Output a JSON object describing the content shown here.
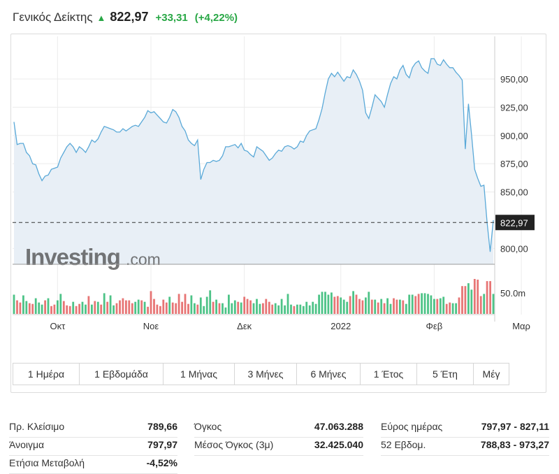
{
  "header": {
    "name": "Γενικός Δείκτης",
    "price": "822,97",
    "change": "+33,31",
    "change_pct": "(+4,22%)"
  },
  "colors": {
    "up": "#2eb872",
    "down": "#e35d5d",
    "line": "#5aa9d8",
    "fill": "#e8eff6",
    "positive_text": "#28a745"
  },
  "watermark": {
    "brand": "Investing",
    "suffix": ".com"
  },
  "chart_data": {
    "type": "area",
    "series": [
      {
        "values": [
          912,
          892,
          893,
          893,
          885,
          882,
          875,
          874,
          866,
          860,
          864,
          865,
          870,
          871,
          872,
          880,
          885,
          890,
          893,
          890,
          885,
          890,
          888,
          885,
          890,
          896,
          894,
          897,
          903,
          908,
          907,
          906,
          905,
          903,
          903,
          906,
          904,
          906,
          908,
          909,
          908,
          912,
          916,
          922,
          920,
          921,
          918,
          915,
          912,
          911,
          916,
          923,
          921,
          916,
          908,
          904,
          896,
          893,
          891,
          896,
          861,
          870,
          876,
          876,
          878,
          877,
          878,
          882,
          890,
          890,
          891,
          892,
          889,
          893,
          887,
          886,
          883,
          881,
          890,
          888,
          886,
          882,
          878,
          880,
          884,
          887,
          886,
          890,
          891,
          890,
          888,
          890,
          895,
          894,
          900,
          904,
          905,
          906,
          914,
          924,
          938,
          950,
          955,
          952,
          956,
          952,
          948,
          952,
          951,
          958,
          954,
          948,
          940,
          920,
          915,
          925,
          936,
          933,
          930,
          925,
          936,
          946,
          952,
          950,
          958,
          962,
          954,
          951,
          960,
          964,
          966,
          960,
          957,
          955,
          968,
          968,
          963,
          962,
          967,
          963,
          960,
          960,
          956,
          953,
          949,
          888,
          928,
          901,
          870,
          862,
          855,
          856,
          823,
          797,
          825
        ],
        "ylim": [
          786,
          984
        ]
      }
    ],
    "volume": {
      "values": [
        27,
        19,
        16,
        26,
        18,
        15,
        14,
        22,
        16,
        13,
        19,
        22,
        11,
        13,
        19,
        28,
        18,
        12,
        11,
        17,
        11,
        14,
        17,
        13,
        25,
        13,
        18,
        17,
        13,
        29,
        17,
        26,
        12,
        15,
        19,
        22,
        19,
        19,
        15,
        17,
        20,
        19,
        17,
        10,
        32,
        21,
        13,
        11,
        20,
        16,
        24,
        16,
        15,
        28,
        17,
        28,
        14,
        26,
        15,
        13,
        23,
        11,
        24,
        33,
        17,
        20,
        15,
        15,
        9,
        27,
        15,
        19,
        17,
        16,
        24,
        21,
        19,
        15,
        21,
        14,
        15,
        21,
        17,
        13,
        15,
        12,
        21,
        12,
        28,
        13,
        11,
        13,
        13,
        11,
        17,
        12,
        17,
        14,
        27,
        31,
        31,
        27,
        30,
        24,
        25,
        23,
        20,
        17,
        25,
        32,
        27,
        21,
        19,
        23,
        31,
        20,
        20,
        16,
        21,
        15,
        22,
        14,
        22,
        20,
        20,
        19,
        14,
        27,
        27,
        25,
        28,
        29,
        29,
        28,
        26,
        21,
        21,
        22,
        24,
        14,
        16,
        15,
        15,
        23,
        39,
        39,
        43,
        34,
        49,
        48,
        25,
        28,
        46,
        46,
        28
      ],
      "up": [
        1,
        0,
        0,
        1,
        1,
        0,
        0,
        1,
        1,
        1,
        0,
        1,
        0,
        0,
        1,
        1,
        0,
        0,
        0,
        1,
        0,
        0,
        1,
        1,
        0,
        1,
        0,
        1,
        0,
        1,
        0,
        1,
        1,
        0,
        0,
        0,
        0,
        0,
        0,
        1,
        1,
        0,
        1,
        0,
        0,
        0,
        0,
        0,
        0,
        0,
        1,
        0,
        0,
        0,
        0,
        0,
        0,
        1,
        1,
        0,
        1,
        1,
        1,
        1,
        0,
        1,
        0,
        1,
        1,
        1,
        1,
        1,
        0,
        1,
        0,
        0,
        0,
        1,
        1,
        1,
        0,
        0,
        0,
        0,
        1,
        1,
        1,
        1,
        1,
        1,
        0,
        1,
        1,
        1,
        1,
        1,
        1,
        1,
        1,
        1,
        1,
        1,
        1,
        0,
        0,
        1,
        1,
        1,
        0,
        1,
        0,
        0,
        0,
        1,
        1,
        0,
        1,
        0,
        1,
        0,
        1,
        1,
        0,
        0,
        1,
        0,
        1,
        1,
        1,
        0,
        0,
        1,
        1,
        1,
        1,
        1,
        0,
        1,
        1,
        0,
        0,
        1,
        1,
        0,
        0,
        0,
        1,
        1,
        0,
        0,
        0,
        1,
        0,
        0,
        1
      ]
    },
    "y_ticks": [
      "950,00",
      "925,00",
      "900,00",
      "875,00",
      "850,00",
      "800,00"
    ],
    "y_tick_values": [
      950,
      925,
      900,
      875,
      850,
      800
    ],
    "x_ticks": [
      "Οκτ",
      "Νοε",
      "Δεκ",
      "2022",
      "Φεβ",
      "Μαρ"
    ],
    "x_tick_index": [
      14,
      44,
      74,
      105,
      135,
      163
    ],
    "current_label": "822,97",
    "current_value": 822.97,
    "volume_label": "50.0m",
    "volume_label_value": 50,
    "grid": true
  },
  "ranges": [
    "1 Ημέρα",
    "1 Εβδομάδα",
    "1 Μήνας",
    "3 Μήνες",
    "6 Μήνες",
    "1 Έτος",
    "5 Έτη",
    "Μέγ"
  ],
  "stats": {
    "col1": [
      {
        "label": "Πρ. Κλείσιμο",
        "value": "789,66"
      },
      {
        "label": "Άνοιγμα",
        "value": "797,97"
      },
      {
        "label": "Ετήσια Μεταβολή",
        "value": "-4,52%"
      }
    ],
    "col2": [
      {
        "label": "Όγκος",
        "value": "47.063.288"
      },
      {
        "label": "Μέσος Όγκος (3μ)",
        "value": "32.425.040"
      }
    ],
    "col3": [
      {
        "label": "Εύρος ημέρας",
        "value": "797,97 - 827,11"
      },
      {
        "label": "52 Εβδομ.",
        "value": "788,83 - 973,27"
      }
    ]
  }
}
